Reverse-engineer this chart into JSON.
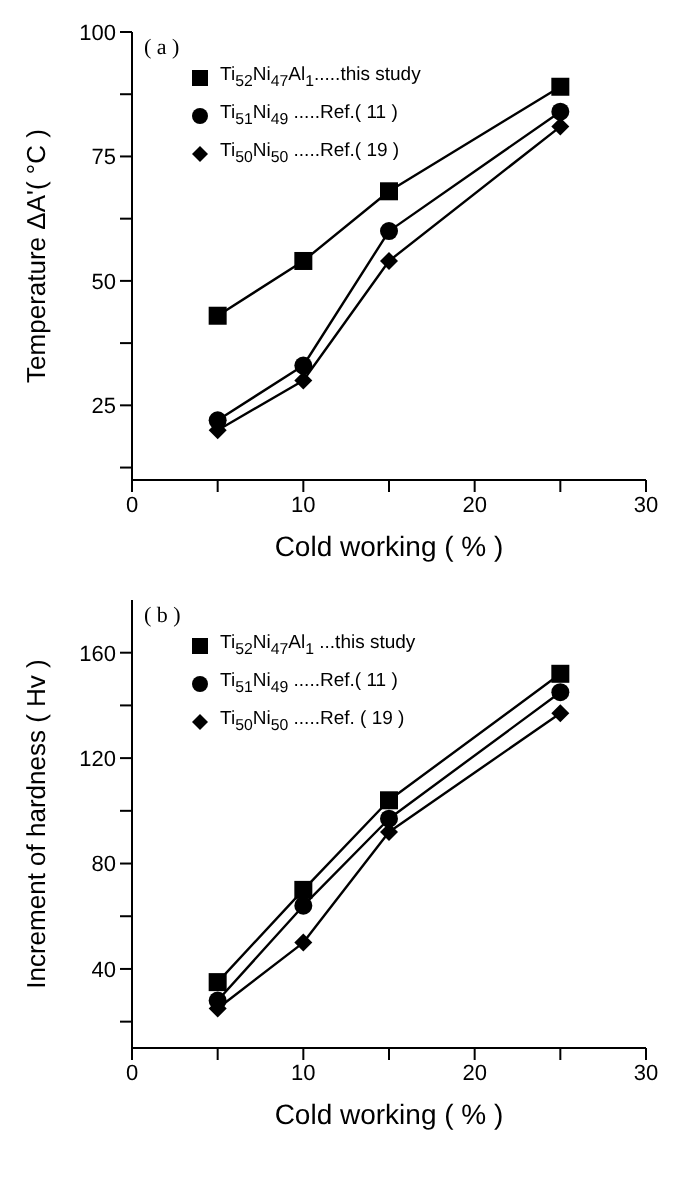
{
  "chart_data": [
    {
      "type": "line",
      "annotations": [
        "( a )"
      ],
      "xlabel": "Cold working ( % )",
      "ylabel": "Temperature ΔA'( °C )",
      "x": [
        5,
        10,
        15,
        25
      ],
      "series": [
        {
          "name": "Ti$_{52}$Ni$_{47}$Al$_{1}$.....this study",
          "color": "#000000",
          "marker": "square",
          "values": [
            43,
            54,
            68,
            89
          ]
        },
        {
          "name": "Ti$_{51}$Ni$_{49}$ .....Ref.( 11 )",
          "color": "#000000",
          "marker": "circle",
          "values": [
            22,
            33,
            60,
            84
          ]
        },
        {
          "name": "Ti$_{50}$Ni$_{50}$ .....Ref.( 19 )",
          "color": "#000000",
          "marker": "diamond",
          "values": [
            20,
            30,
            54,
            81
          ]
        }
      ],
      "xlim": [
        0,
        30
      ],
      "xticks": [
        0,
        {
          "value": 5,
          "label": null
        },
        10,
        {
          "value": 15,
          "label": null
        },
        20,
        {
          "value": 25,
          "label": null
        },
        30
      ],
      "ylim": [
        10,
        100
      ],
      "yticks": [
        {
          "value": 12.5,
          "label": null
        },
        25,
        {
          "value": 37.5,
          "label": null
        },
        50,
        {
          "value": 62.5,
          "label": null
        },
        75,
        {
          "value": 87.5,
          "label": null
        },
        100
      ],
      "grid": false,
      "legend": "top left",
      "line_style": "solid"
    },
    {
      "type": "line",
      "annotations": [
        "( b )"
      ],
      "xlabel": "Cold working ( % )",
      "ylabel": "Increment of hardness ( Hv )",
      "x": [
        5,
        10,
        15,
        25
      ],
      "series": [
        {
          "name": "Ti$_{52}$Ni$_{47}$Al$_{1}$ ...this study",
          "color": "#000000",
          "marker": "square",
          "values": [
            35,
            70,
            104,
            152
          ]
        },
        {
          "name": "Ti$_{51}$Ni$_{49}$ .....Ref.( 11 )",
          "color": "#000000",
          "marker": "circle",
          "values": [
            28,
            64,
            97,
            145
          ]
        },
        {
          "name": "Ti$_{50}$Ni$_{50}$ .....Ref. ( 19 )",
          "color": "#000000",
          "marker": "diamond",
          "values": [
            25,
            50,
            92,
            137
          ]
        }
      ],
      "xlim": [
        0,
        30
      ],
      "xticks": [
        0,
        {
          "value": 5,
          "label": null
        },
        10,
        {
          "value": 15,
          "label": null
        },
        20,
        {
          "value": 25,
          "label": null
        },
        30
      ],
      "ylim": [
        10,
        180
      ],
      "yticks": [
        {
          "value": 20,
          "label": null
        },
        40,
        {
          "value": 60,
          "label": null
        },
        80,
        {
          "value": 100,
          "label": null
        },
        120,
        {
          "value": 140,
          "label": null
        },
        160
      ],
      "grid": false,
      "legend": "top left",
      "line_style": "solid"
    }
  ]
}
